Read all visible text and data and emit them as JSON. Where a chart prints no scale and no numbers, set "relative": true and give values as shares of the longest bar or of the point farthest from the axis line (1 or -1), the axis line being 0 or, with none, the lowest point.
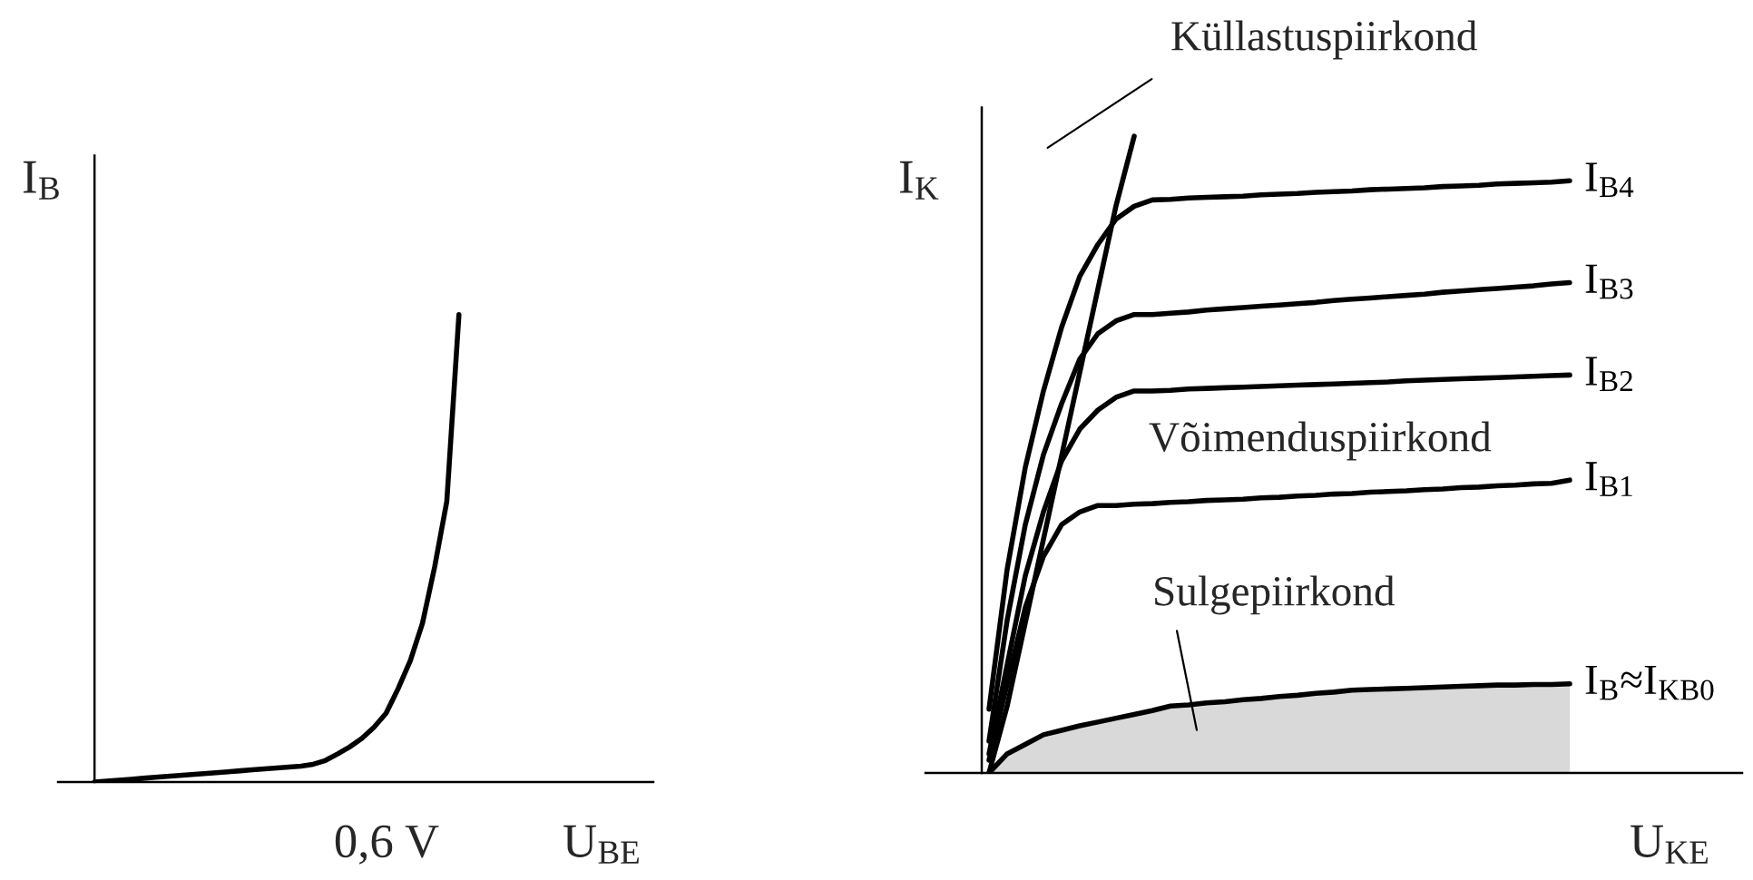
{
  "chart_data": [
    {
      "type": "line",
      "relative": true,
      "xlabel": "U$_{BE}$",
      "ylabel": "I$_{B}$",
      "annotations": [
        "0,6 V"
      ],
      "categories": [
        null,
        null,
        null,
        null,
        null,
        null,
        null,
        null,
        null,
        null,
        null,
        null,
        null,
        null,
        null,
        null,
        null,
        null,
        null,
        null,
        null,
        null,
        null,
        null,
        null,
        null,
        null,
        null,
        null,
        null,
        null
      ],
      "series": [
        {
          "color": "#000000",
          "values": [
            0,
            0.002,
            0.004,
            0.006,
            0.008,
            0.01,
            0.012,
            0.014,
            0.016,
            0.018,
            0.02,
            0.022,
            0.024,
            0.026,
            0.028,
            0.03,
            0.032,
            0.034,
            0.038,
            0.046,
            0.06,
            0.075,
            0.093,
            0.117,
            0.147,
            0.2,
            0.26,
            0.34,
            0.46,
            0.6,
            1.0
          ]
        }
      ]
    },
    {
      "type": "line",
      "relative": true,
      "xlabel": "U$_{KE}$",
      "ylabel": "I$_{K}$",
      "categories": [
        null,
        null,
        null,
        null,
        null,
        null,
        null,
        null,
        null,
        null,
        null,
        null,
        null,
        null,
        null,
        null,
        null,
        null,
        null,
        null,
        null,
        null,
        null,
        null,
        null,
        null,
        null,
        null,
        null,
        null,
        null,
        null,
        null
      ],
      "annotations": [
        "Küllastuspiirkond",
        "Võimenduspiirkond",
        "Sulgepiirkond"
      ],
      "series": [
        {
          "type": "line",
          "color": "#000000",
          "values": [
            0,
            0.105,
            0.236,
            0.367,
            0.498,
            0.629,
            0.76,
            0.891,
            1.0,
            null,
            null,
            null,
            null,
            null,
            null,
            null,
            null,
            null,
            null,
            null,
            null,
            null,
            null,
            null,
            null,
            null,
            null,
            null,
            null,
            null,
            null,
            null,
            null
          ]
        },
        {
          "type": "line",
          "name": "I$_{B4}$",
          "color": "#000000",
          "values": [
            0.1,
            0.32,
            0.48,
            0.6,
            0.7,
            0.78,
            0.83,
            0.87,
            0.89,
            0.9,
            0.901,
            0.903,
            0.904,
            0.905,
            0.906,
            0.908,
            0.909,
            0.91,
            0.912,
            0.913,
            0.914,
            0.916,
            0.917,
            0.918,
            0.919,
            0.921,
            0.922,
            0.923,
            0.925,
            0.926,
            0.927,
            0.928,
            0.93
          ]
        },
        {
          "type": "line",
          "name": "I$_{B3}$",
          "color": "#000000",
          "values": [
            0.05,
            0.24,
            0.39,
            0.5,
            0.58,
            0.65,
            0.69,
            0.71,
            0.72,
            0.72,
            0.722,
            0.724,
            0.727,
            0.729,
            0.731,
            0.733,
            0.735,
            0.737,
            0.739,
            0.742,
            0.744,
            0.746,
            0.748,
            0.75,
            0.752,
            0.755,
            0.757,
            0.759,
            0.761,
            0.763,
            0.765,
            0.768,
            0.77
          ]
        },
        {
          "type": "line",
          "name": "I$_{B2}$",
          "color": "#000000",
          "values": [
            0.03,
            0.17,
            0.31,
            0.41,
            0.49,
            0.54,
            0.57,
            0.59,
            0.6,
            0.6,
            0.601,
            0.603,
            0.604,
            0.605,
            0.606,
            0.607,
            0.608,
            0.609,
            0.61,
            0.611,
            0.612,
            0.613,
            0.614,
            0.616,
            0.617,
            0.618,
            0.619,
            0.62,
            0.621,
            0.622,
            0.623,
            0.624,
            0.625
          ]
        },
        {
          "type": "line",
          "name": "I$_{B1}$",
          "color": "#000000",
          "values": [
            0.02,
            0.14,
            0.26,
            0.34,
            0.39,
            0.41,
            0.42,
            0.42,
            0.422,
            0.423,
            0.425,
            0.426,
            0.428,
            0.429,
            0.43,
            0.432,
            0.433,
            0.435,
            0.436,
            0.438,
            0.439,
            0.441,
            0.442,
            0.443,
            0.445,
            0.446,
            0.448,
            0.449,
            0.451,
            0.452,
            0.454,
            0.455,
            0.46
          ]
        },
        {
          "type": "area",
          "name": "I$_{B}$≈I$_{KB0}$",
          "color": "#d9d9d9",
          "values": [
            0,
            0.03,
            0.045,
            0.06,
            0.067,
            0.074,
            0.08,
            0.086,
            0.092,
            0.098,
            0.105,
            0.107,
            0.11,
            0.112,
            0.115,
            0.117,
            0.12,
            0.122,
            0.125,
            0.127,
            0.13,
            0.131,
            0.132,
            0.133,
            0.134,
            0.135,
            0.136,
            0.137,
            0.138,
            0.138,
            0.139,
            0.139,
            0.14
          ]
        }
      ]
    }
  ]
}
